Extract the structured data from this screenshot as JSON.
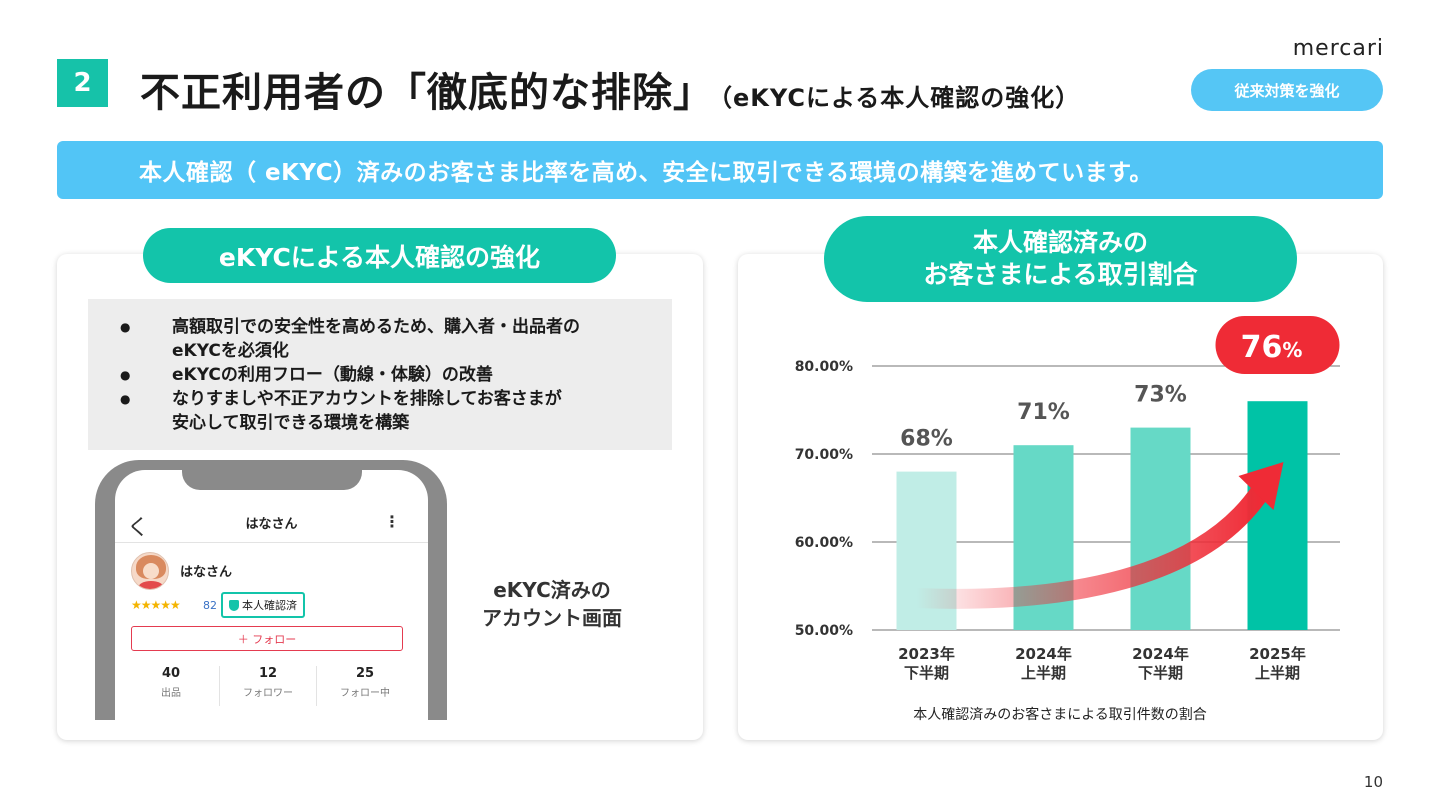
{
  "header": {
    "number": "2",
    "title": "不正利用者の「徹底的な排除」",
    "subtitle": "（eKYCによる本人確認の強化）",
    "logo": "mercari",
    "tag": "従来対策を強化"
  },
  "banner": "本人確認（ eKYC）済みのお客さま比率を高め、安全に取引できる環境の構築を進めています。",
  "left_card": {
    "pill": "eKYCによる本人確認の強化",
    "bullets": [
      "高額取引での安全性を高めるため、購入者・出品者の\neKYCを必須化",
      "eKYCの利用フロー（動線・体験）の改善",
      "なりすましや不正アカウントを排除してお客さまが\n安心して取引できる環境を構築"
    ],
    "bullet_marker": "●",
    "phone": {
      "back_glyph": "く",
      "title": "はなさん",
      "more_glyph": "⋮",
      "user_name": "はなさん",
      "stars": "★★★★★",
      "rating_count": "82",
      "verified_label": "本人確認済",
      "follow_label": "＋ フォロー",
      "stats": [
        {
          "value": "40",
          "label": "出品"
        },
        {
          "value": "12",
          "label": "フォロワー"
        },
        {
          "value": "25",
          "label": "フォロー中"
        }
      ]
    },
    "caption": "eKYC済みの\nアカウント画面"
  },
  "right_card": {
    "pill_line1": "本人確認済みの",
    "pill_line2": "お客さまによる取引割合"
  },
  "chart_data": {
    "type": "bar",
    "categories": [
      "2023年\n下半期",
      "2024年\n上半期",
      "2024年\n下半期",
      "2025年\n上半期"
    ],
    "values": [
      68,
      71,
      73,
      76
    ],
    "data_labels": [
      "68%",
      "71%",
      "73%",
      "76%"
    ],
    "highlight_label": "76",
    "highlight_unit": "%",
    "ytick_labels": [
      "50.00%",
      "60.00%",
      "70.00%",
      "80.00%"
    ],
    "yticks": [
      50,
      60,
      70,
      80
    ],
    "ylim": [
      50,
      80
    ],
    "bar_colors": [
      "#c0ede6",
      "#66d9c6",
      "#66d9c6",
      "#00c3a6"
    ],
    "highlight_color": "#ef2b36",
    "trend_arrow": true,
    "grid": true,
    "caption": "本人確認済みのお客さまによる取引件数の割合"
  },
  "page_number": "10",
  "colors": {
    "teal": "#13c4aa",
    "sky": "#52c5f6",
    "red": "#ef2b36"
  }
}
